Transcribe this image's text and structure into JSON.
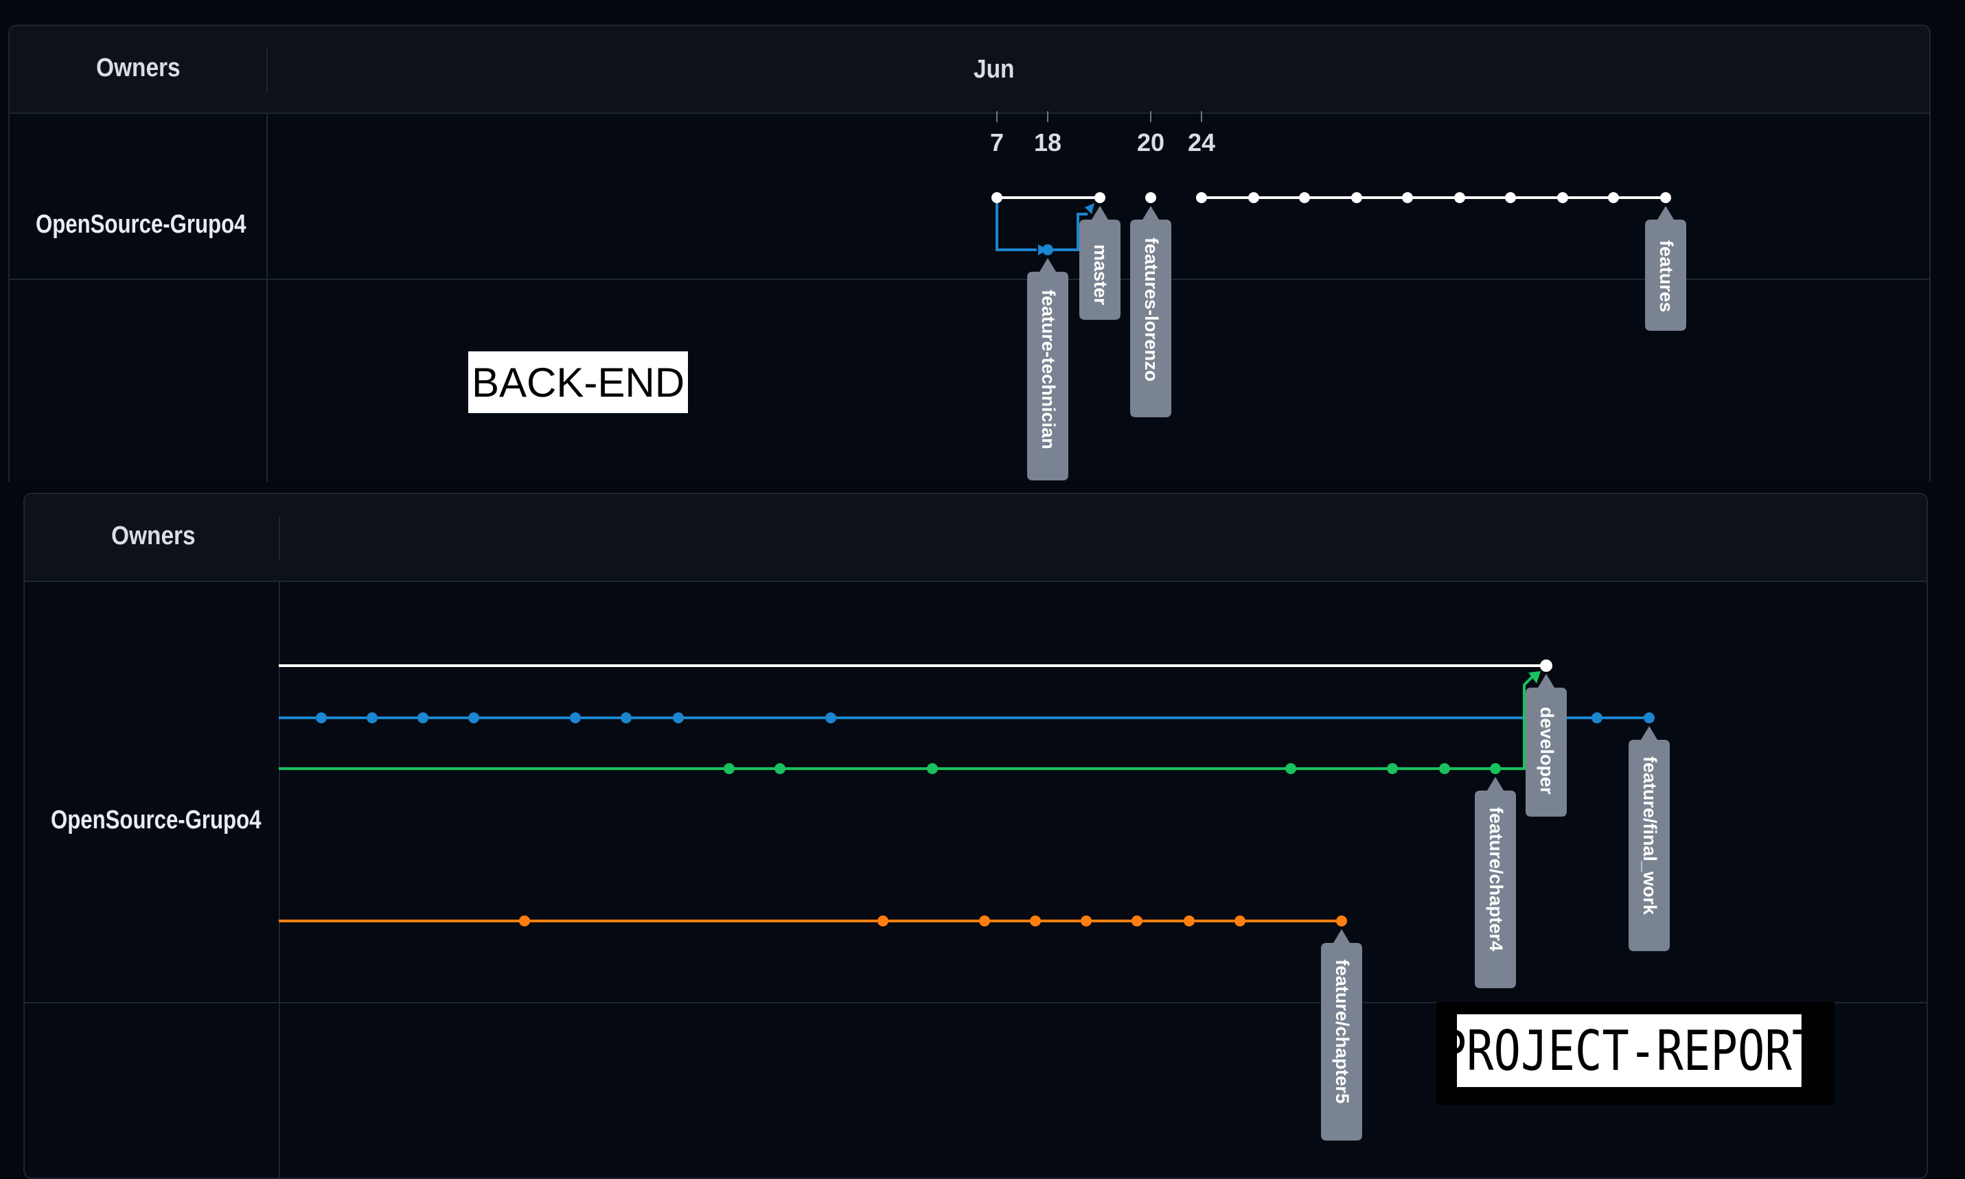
{
  "backend": {
    "header": {
      "owners_label": "Owners",
      "month_label": "Jun"
    },
    "dates": [
      "7",
      "18",
      "20",
      "24"
    ],
    "owner": "OpenSource-Grupo4",
    "branches": [
      {
        "name": "master",
        "color": "#ffffff"
      },
      {
        "name": "feature-technician",
        "color": "#1c86d0"
      },
      {
        "name": "features-lorenzo",
        "color": "#ffffff"
      },
      {
        "name": "features",
        "color": "#ffffff"
      }
    ],
    "stamp": "BACK-END"
  },
  "report": {
    "header": {
      "owners_label": "Owners"
    },
    "owner": "OpenSource-Grupo4",
    "branches": [
      {
        "name": "developer",
        "color": "#ffffff"
      },
      {
        "name": "feature/final_work",
        "color": "#1c86d0"
      },
      {
        "name": "feature/chapter4",
        "color": "#19c15f"
      },
      {
        "name": "feature/chapter5",
        "color": "#ff7f0e"
      }
    ],
    "stamp": "PROJECT-REPORT"
  }
}
